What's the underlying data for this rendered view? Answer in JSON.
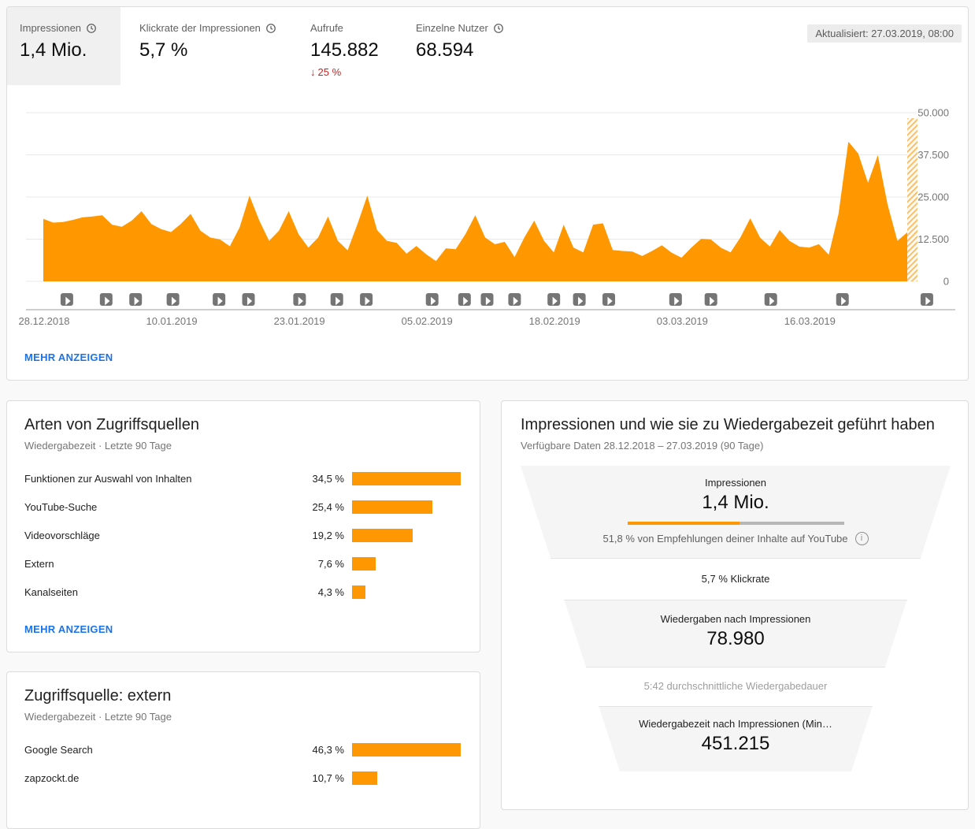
{
  "colors": {
    "accent_orange": "#ff9800",
    "link_blue": "#1a73e8",
    "negative_red": "#c5221f",
    "selected_tab_gray": "#f0f0f0",
    "funnel_section_gray": "#f5f5f5"
  },
  "header": {
    "updated_badge": "Aktualisiert: 27.03.2019, 08:00",
    "metrics": [
      {
        "label": "Impressionen",
        "value": "1,4 Mio.",
        "clock_icon": true,
        "selected": true
      },
      {
        "label": "Klickrate der Impressionen",
        "value": "5,7 %",
        "clock_icon": true,
        "selected": false
      },
      {
        "label": "Aufrufe",
        "value": "145.882",
        "clock_icon": false,
        "selected": false,
        "delta": {
          "direction": "down",
          "text": "25 %"
        }
      },
      {
        "label": "Einzelne Nutzer",
        "value": "68.594",
        "clock_icon": true,
        "selected": false
      }
    ],
    "show_more_label": "MEHR ANZEIGEN"
  },
  "chart_data": [
    {
      "type": "area",
      "metric": "Impressionen",
      "color": "#ff9800",
      "ylim": [
        0,
        50000
      ],
      "y_ticks": [
        {
          "value": 50000,
          "label": "50.000"
        },
        {
          "value": 37500,
          "label": "37.500"
        },
        {
          "value": 25000,
          "label": "25.000"
        },
        {
          "value": 12500,
          "label": "12.500"
        },
        {
          "value": 0,
          "label": "0"
        }
      ],
      "x_ticks": [
        {
          "day": 0,
          "label": "28.12.2018"
        },
        {
          "day": 13,
          "label": "10.01.2019"
        },
        {
          "day": 26,
          "label": "23.01.2019"
        },
        {
          "day": 39,
          "label": "05.02.2019"
        },
        {
          "day": 52,
          "label": "18.02.2019"
        },
        {
          "day": 65,
          "label": "03.03.2019"
        },
        {
          "day": 78,
          "label": "16.03.2019"
        }
      ],
      "days_total": 90,
      "incomplete_data_from_day": 88,
      "daily_values_est": [
        18500,
        17400,
        17600,
        18200,
        19000,
        19200,
        19600,
        16800,
        16200,
        18000,
        20800,
        17000,
        15500,
        14600,
        17000,
        20000,
        15000,
        13000,
        12400,
        10400,
        16000,
        25400,
        18000,
        12000,
        15000,
        20800,
        14000,
        10000,
        13000,
        19200,
        12000,
        9200,
        17000,
        25400,
        15200,
        12000,
        11400,
        8200,
        10500,
        8000,
        6000,
        9800,
        9500,
        14000,
        19600,
        13000,
        11000,
        11700,
        7200,
        13000,
        18000,
        12000,
        8600,
        16800,
        10000,
        8600,
        16800,
        17200,
        9300,
        9000,
        8800,
        7500,
        9000,
        10700,
        8500,
        7000,
        10000,
        12600,
        12400,
        10000,
        8600,
        13000,
        18700,
        13000,
        10300,
        15200,
        12000,
        10300,
        10000,
        11000,
        7900,
        20000,
        41400,
        37900,
        29200,
        37400,
        22700,
        12000,
        14500
      ],
      "video_publish_marker_days": [
        2.4,
        6.4,
        9.4,
        13.2,
        17.9,
        20.9,
        26.1,
        29.9,
        32.9,
        39.6,
        42.9,
        45.2,
        48,
        52,
        54.6,
        57.6,
        64.4,
        68,
        74.1,
        81.4,
        90
      ]
    },
    {
      "type": "bar",
      "title": "Arten von Zugriffsquellen",
      "subtitle": "Wiedergabezeit · Letzte 90 Tage",
      "unit": "%",
      "categories": [
        "Funktionen zur Auswahl von Inhalten",
        "YouTube-Suche",
        "Videovorschläge",
        "Extern",
        "Kanalseiten"
      ],
      "values": [
        34.5,
        25.4,
        19.2,
        7.6,
        4.3
      ],
      "value_labels": [
        "34,5 %",
        "25,4 %",
        "19,2 %",
        "7,6 %",
        "4,3 %"
      ],
      "more_label": "MEHR ANZEIGEN"
    },
    {
      "type": "bar",
      "title": "Zugriffsquelle: extern",
      "subtitle": "Wiedergabezeit · Letzte 90 Tage",
      "unit": "%",
      "categories": [
        "Google Search",
        "zapzockt.de"
      ],
      "values": [
        46.3,
        10.7
      ],
      "value_labels": [
        "46,3 %",
        "10,7 %"
      ]
    },
    {
      "type": "funnel",
      "title": "Impressionen und wie sie zu Wiedergabezeit geführt haben",
      "subtitle": "Verfügbare Daten 28.12.2018 – 27.03.2019 (90 Tage)",
      "stages": [
        {
          "kind": "metric",
          "label": "Impressionen",
          "value": "1,4 Mio.",
          "progress_pct": 51.8,
          "progress_text": "51,8 % von Empfehlungen deiner Inhalte auf YouTube"
        },
        {
          "kind": "note",
          "text": "5,7 % Klickrate"
        },
        {
          "kind": "metric",
          "label": "Wiedergaben nach Impressionen",
          "value": "78.980"
        },
        {
          "kind": "note",
          "text": "5:42 durchschnittliche Wiedergabedauer"
        },
        {
          "kind": "metric",
          "label": "Wiedergabezeit nach Impressionen (Min…",
          "value": "451.215"
        }
      ]
    }
  ]
}
